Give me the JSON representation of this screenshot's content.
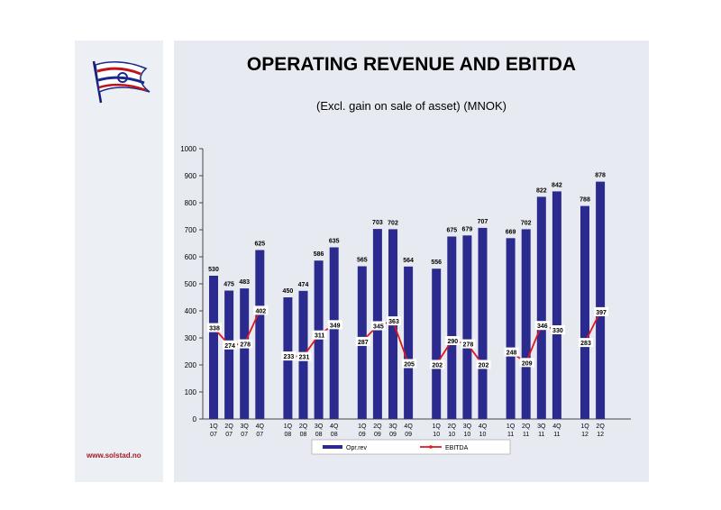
{
  "header": {
    "title": "OPERATING REVENUE AND EBITDA",
    "subtitle": "(Excl. gain on sale of asset) (MNOK)"
  },
  "footer": {
    "website": "www.solstad.no"
  },
  "icons": {
    "logo": "flag-logo-icon"
  },
  "colors": {
    "bar": "#2b2b8f",
    "line": "#e0161f",
    "brand": "#a01c22"
  },
  "chart_data": {
    "type": "bar",
    "title": "OPERATING REVENUE AND EBITDA",
    "subtitle": "(Excl. gain on sale of asset) (MNOK)",
    "categories": [
      "1Q\n07",
      "2Q\n07",
      "3Q\n07",
      "4Q\n07",
      "1Q\n08",
      "2Q\n08",
      "3Q\n08",
      "4Q\n08",
      "1Q\n09",
      "2Q\n09",
      "3Q\n09",
      "4Q\n09",
      "1Q\n10",
      "2Q\n10",
      "3Q\n10",
      "4Q\n10",
      "1Q\n11",
      "2Q\n11",
      "3Q\n11",
      "4Q\n11",
      "1Q\n12",
      "2Q\n12"
    ],
    "groups": [
      4,
      4,
      4,
      4,
      4,
      2
    ],
    "series": [
      {
        "name": "Opr.rev",
        "type": "bar",
        "values": [
          530,
          475,
          483,
          625,
          450,
          474,
          586,
          635,
          565,
          703,
          702,
          564,
          556,
          675,
          679,
          707,
          669,
          702,
          822,
          842,
          788,
          878
        ]
      },
      {
        "name": "EBITDA",
        "type": "line",
        "values": [
          338,
          274,
          278,
          402,
          233,
          231,
          311,
          349,
          287,
          345,
          363,
          205,
          202,
          290,
          278,
          202,
          248,
          209,
          346,
          330,
          283,
          397
        ]
      }
    ],
    "ylim": [
      0,
      1000
    ],
    "yticks": [
      0,
      100,
      200,
      300,
      400,
      500,
      600,
      700,
      800,
      900,
      1000
    ],
    "grid": false,
    "legend": "bottom"
  }
}
